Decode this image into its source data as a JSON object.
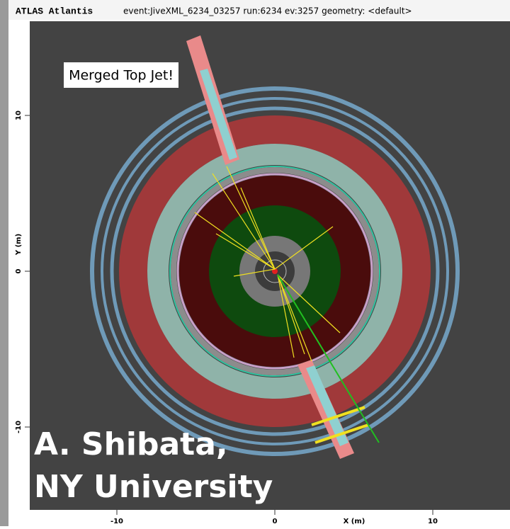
{
  "header": {
    "app": "ATLAS Atlantis",
    "event": "event:JiveXML_6234_03257 run:6234 ev:3257 geometry: <default>"
  },
  "axes": {
    "x_label": "X (m)",
    "y_label": "Y (m)",
    "xticks": [
      -10,
      0,
      10
    ],
    "yticks": [
      10,
      0,
      -10
    ]
  },
  "annotation": "Merged Top Jet!",
  "credit": [
    "A. Shibata,",
    "NY University"
  ]
}
